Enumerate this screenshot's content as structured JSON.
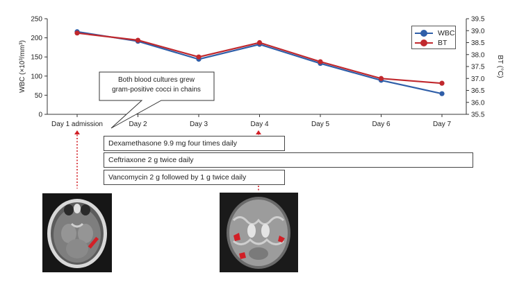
{
  "chart_data": {
    "type": "line",
    "categories": [
      "Day 1 admission",
      "Day 2",
      "Day 3",
      "Day 4",
      "Day 5",
      "Day 6",
      "Day 7"
    ],
    "series": [
      {
        "name": "WBC",
        "axis": "left",
        "color": "#2f5ea8",
        "values": [
          216,
          191,
          144,
          183,
          133,
          89,
          54
        ]
      },
      {
        "name": "BT",
        "axis": "right",
        "color": "#c0282d",
        "values": [
          38.9,
          38.6,
          37.9,
          38.5,
          37.7,
          37.0,
          36.8
        ]
      }
    ],
    "y_left": {
      "label": "WBC (×10³/mm³)",
      "ylim": [
        0,
        250
      ],
      "ticks": [
        "0",
        "50",
        "100",
        "150",
        "200",
        "250"
      ]
    },
    "y_right": {
      "label": "BT (°C)",
      "ylim": [
        35.5,
        39.5
      ],
      "ticks": [
        "35.5",
        "36.0",
        "36.5",
        "37.0",
        "37.5",
        "38.0",
        "38.5",
        "39.0",
        "39.5"
      ]
    },
    "legend": "top-right",
    "grid": false
  },
  "callout": {
    "line1": "Both blood cultures grew",
    "line2": "gram-positive cocci in chains"
  },
  "treatments": [
    {
      "label": "Dexamethasone 9.9 mg four times daily"
    },
    {
      "label": "Ceftriaxone 2 g twice daily"
    },
    {
      "label": "Vancomycin 2 g followed by 1 g twice daily"
    }
  ],
  "colors": {
    "wbc": "#2f5ea8",
    "bt": "#c0282d",
    "arrow": "#d21f26"
  },
  "images": [
    {
      "kind": "axial head CT scan",
      "icon": "ct-scan-icon"
    },
    {
      "kind": "axial brain MRI scan",
      "icon": "mri-scan-icon"
    }
  ]
}
